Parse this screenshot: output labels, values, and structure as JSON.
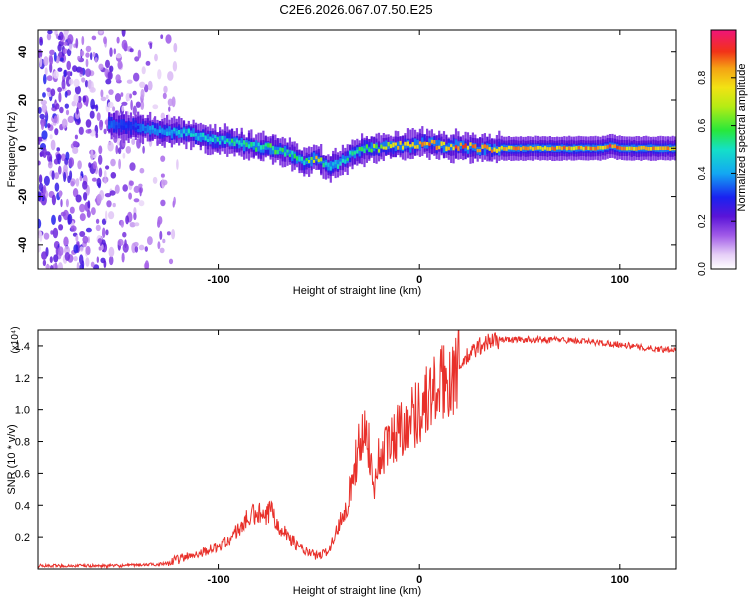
{
  "figure_title": "C2E6.2026.067.07.50.E25",
  "chart_data": [
    {
      "type": "heatmap",
      "xlabel": "Height of straight line (km)",
      "ylabel": "Frequency (Hz)",
      "xlim": [
        -190,
        128
      ],
      "ylim": [
        -50,
        49
      ],
      "xticks": [
        -100,
        0,
        100
      ],
      "xtick_labels": [
        "-100",
        "0",
        "100"
      ],
      "yticks": [
        -40,
        -20,
        0,
        20,
        40
      ],
      "ytick_labels": [
        "-40",
        "-20",
        "0",
        "20",
        "40"
      ],
      "colorbar": {
        "label": "Normalized spectral amplitude",
        "range": [
          0,
          1
        ],
        "ticks": [
          0.0,
          0.2,
          0.4,
          0.6,
          0.8
        ],
        "tick_labels": [
          "0.0",
          "0.2",
          "0.4",
          "0.6",
          "0.8"
        ]
      },
      "noise_region_x": [
        -190,
        -120
      ],
      "ridge": {
        "x": [
          -155,
          -145,
          -135,
          -125,
          -115,
          -105,
          -95,
          -85,
          -75,
          -65,
          -58,
          -52,
          -46,
          -40,
          -35,
          -30,
          -25,
          -20,
          -15,
          -10,
          -5,
          0,
          5,
          10,
          20,
          30,
          40,
          50,
          60,
          70,
          80,
          90,
          95,
          100,
          110,
          120,
          128
        ],
        "freq": [
          10,
          9,
          8,
          7,
          6,
          4,
          3,
          1,
          0,
          -2,
          -6,
          -4,
          -8,
          -6,
          -3,
          -1,
          0,
          0,
          1,
          1,
          1,
          2,
          2,
          1,
          1,
          0,
          0,
          0,
          0,
          0,
          0,
          0,
          1,
          0,
          0,
          0,
          0
        ],
        "amplitude": [
          0.35,
          0.3,
          0.4,
          0.45,
          0.5,
          0.5,
          0.55,
          0.55,
          0.6,
          0.6,
          0.5,
          0.85,
          0.45,
          0.5,
          0.55,
          0.6,
          0.65,
          0.7,
          0.75,
          0.8,
          0.8,
          0.85,
          0.9,
          0.85,
          0.9,
          0.85,
          0.85,
          0.85,
          0.85,
          0.85,
          0.85,
          0.85,
          0.95,
          0.85,
          0.85,
          0.85,
          0.85
        ]
      }
    },
    {
      "type": "line",
      "xlabel": "Height of straight line (km)",
      "ylabel": "SNR (10 * v/v)",
      "scale_label": "(x10⁴)",
      "xlim": [
        -190,
        128
      ],
      "ylim": [
        0,
        1.5
      ],
      "xticks": [
        -100,
        0,
        100
      ],
      "xtick_labels": [
        "-100",
        "0",
        "100"
      ],
      "yticks": [
        0.2,
        0.4,
        0.6,
        0.8,
        1.0,
        1.2,
        1.4
      ],
      "ytick_labels": [
        "0.2",
        "0.4",
        "0.6",
        "0.8",
        "1.0",
        "1.2",
        "1.4"
      ],
      "series": [
        {
          "name": "SNR",
          "color": "#e8302a",
          "x": [
            -190,
            -170,
            -150,
            -130,
            -125,
            -120,
            -115,
            -110,
            -105,
            -100,
            -95,
            -90,
            -85,
            -80,
            -77,
            -74,
            -70,
            -65,
            -60,
            -55,
            -50,
            -45,
            -42,
            -38,
            -35,
            -33,
            -30,
            -28,
            -25,
            -23,
            -20,
            -15,
            -10,
            -5,
            0,
            5,
            10,
            15,
            20,
            25,
            30,
            35,
            40,
            50,
            60,
            70,
            80,
            90,
            100,
            110,
            120,
            128
          ],
          "y": [
            0.02,
            0.02,
            0.02,
            0.03,
            0.04,
            0.06,
            0.08,
            0.1,
            0.12,
            0.14,
            0.18,
            0.25,
            0.32,
            0.35,
            0.3,
            0.38,
            0.28,
            0.2,
            0.14,
            0.1,
            0.08,
            0.12,
            0.2,
            0.35,
            0.45,
            0.6,
            0.75,
            0.9,
            0.8,
            0.5,
            0.7,
            0.78,
            0.88,
            0.94,
            1.0,
            1.08,
            1.14,
            1.2,
            1.28,
            1.34,
            1.4,
            1.43,
            1.44,
            1.44,
            1.44,
            1.44,
            1.43,
            1.42,
            1.41,
            1.39,
            1.38,
            1.38
          ]
        }
      ]
    }
  ]
}
